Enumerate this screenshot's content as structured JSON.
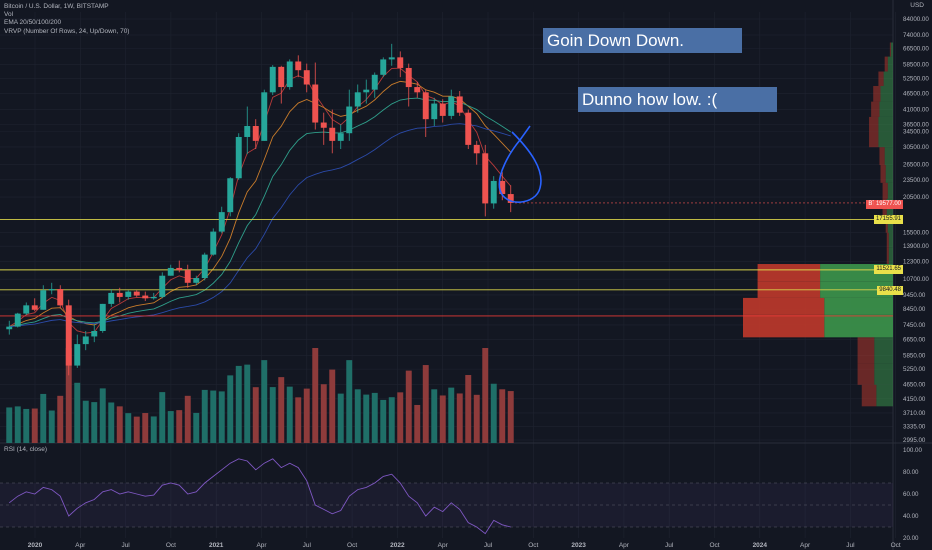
{
  "legend": {
    "symbol": "Bitcoin / U.S. Dollar, 1W, BITSTAMP",
    "vol": "Vol",
    "ema": "EMA 20/50/100/200",
    "vrvp": "VRVP (Number Of Rows, 24, Up/Down, 70)",
    "rsi": "RSI (14, close)"
  },
  "annotations": {
    "goin_down": "Goin Down Down.",
    "dunno": "Dunno how low. :("
  },
  "axis": {
    "unit": "USD",
    "colors": {
      "background": "#131722",
      "grid": "#1f2330",
      "up": "#26a69a",
      "down": "#ef5350",
      "ema20": "#b63a3a",
      "ema50": "#c77b2b",
      "ema100": "#2f9e8a",
      "ema200": "#2b4aa8",
      "rsi": "#7e57c2",
      "hline_yellow": "#d8d24a",
      "hline_red": "#e53935",
      "pen": "#2962ff"
    }
  },
  "badges": [
    {
      "label": "BTCUSD",
      "value": "19577.00",
      "style": "red"
    },
    {
      "label": "",
      "value": "17155.91",
      "style": "yellow"
    },
    {
      "label": "",
      "value": "11521.65",
      "style": "yellow"
    },
    {
      "label": "",
      "value": "9840.48",
      "style": "yellow"
    }
  ],
  "chart_data": {
    "type": "candlestick",
    "title": "Bitcoin / U.S. Dollar, 1W, BITSTAMP",
    "y_scale": "log",
    "y_ticks": [
      "84000.00",
      "74000.00",
      "66500.00",
      "58500.00",
      "52500.00",
      "46500.00",
      "41000.00",
      "36500.00",
      "34500.00",
      "30500.00",
      "26500.00",
      "23500.00",
      "20500.00",
      "15500.00",
      "13900.00",
      "12300.00",
      "10700.00",
      "9450.00",
      "8450.00",
      "7450.00",
      "6650.00",
      "5850.00",
      "5250.00",
      "4650.00",
      "4150.00",
      "3710.00",
      "3335.00",
      "2995.00"
    ],
    "x_ticks": [
      "2020",
      "Apr",
      "Jul",
      "Oct",
      "2021",
      "Apr",
      "Jul",
      "Oct",
      "2022",
      "Apr",
      "Jul",
      "Oct",
      "2023",
      "Apr",
      "Jul",
      "Oct",
      "2024",
      "Apr",
      "Jul",
      "Oct"
    ],
    "candles": [
      [
        7200,
        7700,
        6900,
        7350
      ],
      [
        7350,
        8200,
        7300,
        8150
      ],
      [
        8150,
        8900,
        8050,
        8700
      ],
      [
        8700,
        9200,
        8300,
        8400
      ],
      [
        8400,
        10200,
        8400,
        9800
      ],
      [
        9800,
        10400,
        9500,
        9900
      ],
      [
        9900,
        10200,
        8500,
        8700
      ],
      [
        8700,
        9100,
        5000,
        5400
      ],
      [
        5400,
        6900,
        5300,
        6400
      ],
      [
        6400,
        7100,
        6100,
        6800
      ],
      [
        6800,
        7500,
        6500,
        7100
      ],
      [
        7100,
        8800,
        7000,
        8800
      ],
      [
        8800,
        9900,
        8600,
        9600
      ],
      [
        9600,
        10000,
        8900,
        9300
      ],
      [
        9300,
        9800,
        9100,
        9700
      ],
      [
        9700,
        9800,
        9300,
        9400
      ],
      [
        9400,
        9700,
        9000,
        9200
      ],
      [
        9200,
        9600,
        9100,
        9300
      ],
      [
        9300,
        11300,
        9200,
        11000
      ],
      [
        11000,
        12000,
        11000,
        11700
      ],
      [
        11700,
        12400,
        11300,
        11500
      ],
      [
        11500,
        12000,
        10000,
        10400
      ],
      [
        10400,
        11000,
        10200,
        10800
      ],
      [
        10800,
        13200,
        10600,
        13000
      ],
      [
        13000,
        16000,
        12900,
        15600
      ],
      [
        15600,
        19000,
        15400,
        18200
      ],
      [
        18200,
        24000,
        17600,
        23800
      ],
      [
        23800,
        34000,
        23500,
        33000
      ],
      [
        33000,
        42000,
        28800,
        36000
      ],
      [
        36000,
        38000,
        30000,
        32000
      ],
      [
        32000,
        48000,
        32000,
        47000
      ],
      [
        47000,
        58300,
        46000,
        57500
      ],
      [
        57500,
        58000,
        43000,
        49000
      ],
      [
        49000,
        61000,
        48000,
        60000
      ],
      [
        60000,
        63000,
        53000,
        56000
      ],
      [
        56000,
        59000,
        47000,
        50000
      ],
      [
        50000,
        59500,
        35000,
        37000
      ],
      [
        37000,
        40000,
        31000,
        35500
      ],
      [
        35500,
        41000,
        29000,
        32000
      ],
      [
        32000,
        36500,
        30000,
        34000
      ],
      [
        34000,
        48000,
        32000,
        42000
      ],
      [
        42000,
        50000,
        40000,
        47000
      ],
      [
        47000,
        52000,
        43000,
        48000
      ],
      [
        48000,
        55000,
        45000,
        54000
      ],
      [
        54000,
        62000,
        53000,
        61000
      ],
      [
        61000,
        69000,
        58000,
        62000
      ],
      [
        62000,
        65000,
        53000,
        57000
      ],
      [
        57000,
        59000,
        42000,
        49000
      ],
      [
        49000,
        51000,
        45000,
        47000
      ],
      [
        47000,
        48000,
        33000,
        38000
      ],
      [
        38000,
        45000,
        36000,
        43000
      ],
      [
        43000,
        44500,
        37000,
        39000
      ],
      [
        39000,
        48000,
        38000,
        45500
      ],
      [
        45500,
        47500,
        39000,
        40000
      ],
      [
        40000,
        41000,
        30000,
        31000
      ],
      [
        31000,
        32000,
        26500,
        29000
      ],
      [
        29000,
        31000,
        17600,
        19500
      ],
      [
        19500,
        24200,
        18700,
        23300
      ],
      [
        23300,
        25000,
        20000,
        21000
      ],
      [
        21000,
        22500,
        18200,
        19577
      ]
    ],
    "volume": [
      "Bars approximate weekly volume (relative units)"
    ],
    "ema": {
      "ema20": "red",
      "ema50": "orange",
      "ema100": "teal",
      "ema200": "blue"
    },
    "horizontal_lines": [
      {
        "price": 17155.91,
        "color": "yellow"
      },
      {
        "price": 11521.65,
        "color": "yellow"
      },
      {
        "price": 9840.48,
        "color": "yellow"
      },
      {
        "price": 8000,
        "color": "red"
      }
    ],
    "volume_profile": [
      {
        "price": 66500,
        "up": 2,
        "down": 1
      },
      {
        "price": 58500,
        "up": 5,
        "down": 3
      },
      {
        "price": 52500,
        "up": 9,
        "down": 5
      },
      {
        "price": 46500,
        "up": 12,
        "down": 7
      },
      {
        "price": 41000,
        "up": 13,
        "down": 8
      },
      {
        "price": 36500,
        "up": 14,
        "down": 9
      },
      {
        "price": 32500,
        "up": 14,
        "down": 9
      },
      {
        "price": 28500,
        "up": 8,
        "down": 5
      },
      {
        "price": 24500,
        "up": 7,
        "down": 5
      },
      {
        "price": 21500,
        "up": 5,
        "down": 5
      },
      {
        "price": 19000,
        "up": 6,
        "down": 4
      },
      {
        "price": 16500,
        "up": 5,
        "down": 2
      },
      {
        "price": 14500,
        "up": 4,
        "down": 2
      },
      {
        "price": 13000,
        "up": 4,
        "down": 2
      },
      {
        "price": 11200,
        "up": 70,
        "down": 60
      },
      {
        "price": 9900,
        "up": 70,
        "down": 60
      },
      {
        "price": 8600,
        "up": 66,
        "down": 78
      },
      {
        "price": 7600,
        "up": 66,
        "down": 78
      },
      {
        "price": 6000,
        "up": 18,
        "down": 16
      },
      {
        "price": 5000,
        "up": 18,
        "down": 16
      },
      {
        "price": 4300,
        "up": 16,
        "down": 14
      }
    ],
    "rsi": {
      "ticks": [
        "100.00",
        "80.00",
        "60.00",
        "40.00",
        "20.00"
      ],
      "values": [
        52,
        58,
        62,
        60,
        66,
        64,
        58,
        40,
        47,
        52,
        55,
        62,
        64,
        60,
        62,
        60,
        58,
        59,
        68,
        70,
        68,
        60,
        62,
        70,
        76,
        82,
        88,
        92,
        90,
        82,
        88,
        92,
        84,
        88,
        84,
        72,
        50,
        46,
        42,
        45,
        58,
        64,
        66,
        70,
        76,
        78,
        70,
        58,
        52,
        40,
        48,
        44,
        52,
        46,
        34,
        30,
        24,
        36,
        32,
        30
      ],
      "band": [
        30,
        70
      ]
    }
  }
}
